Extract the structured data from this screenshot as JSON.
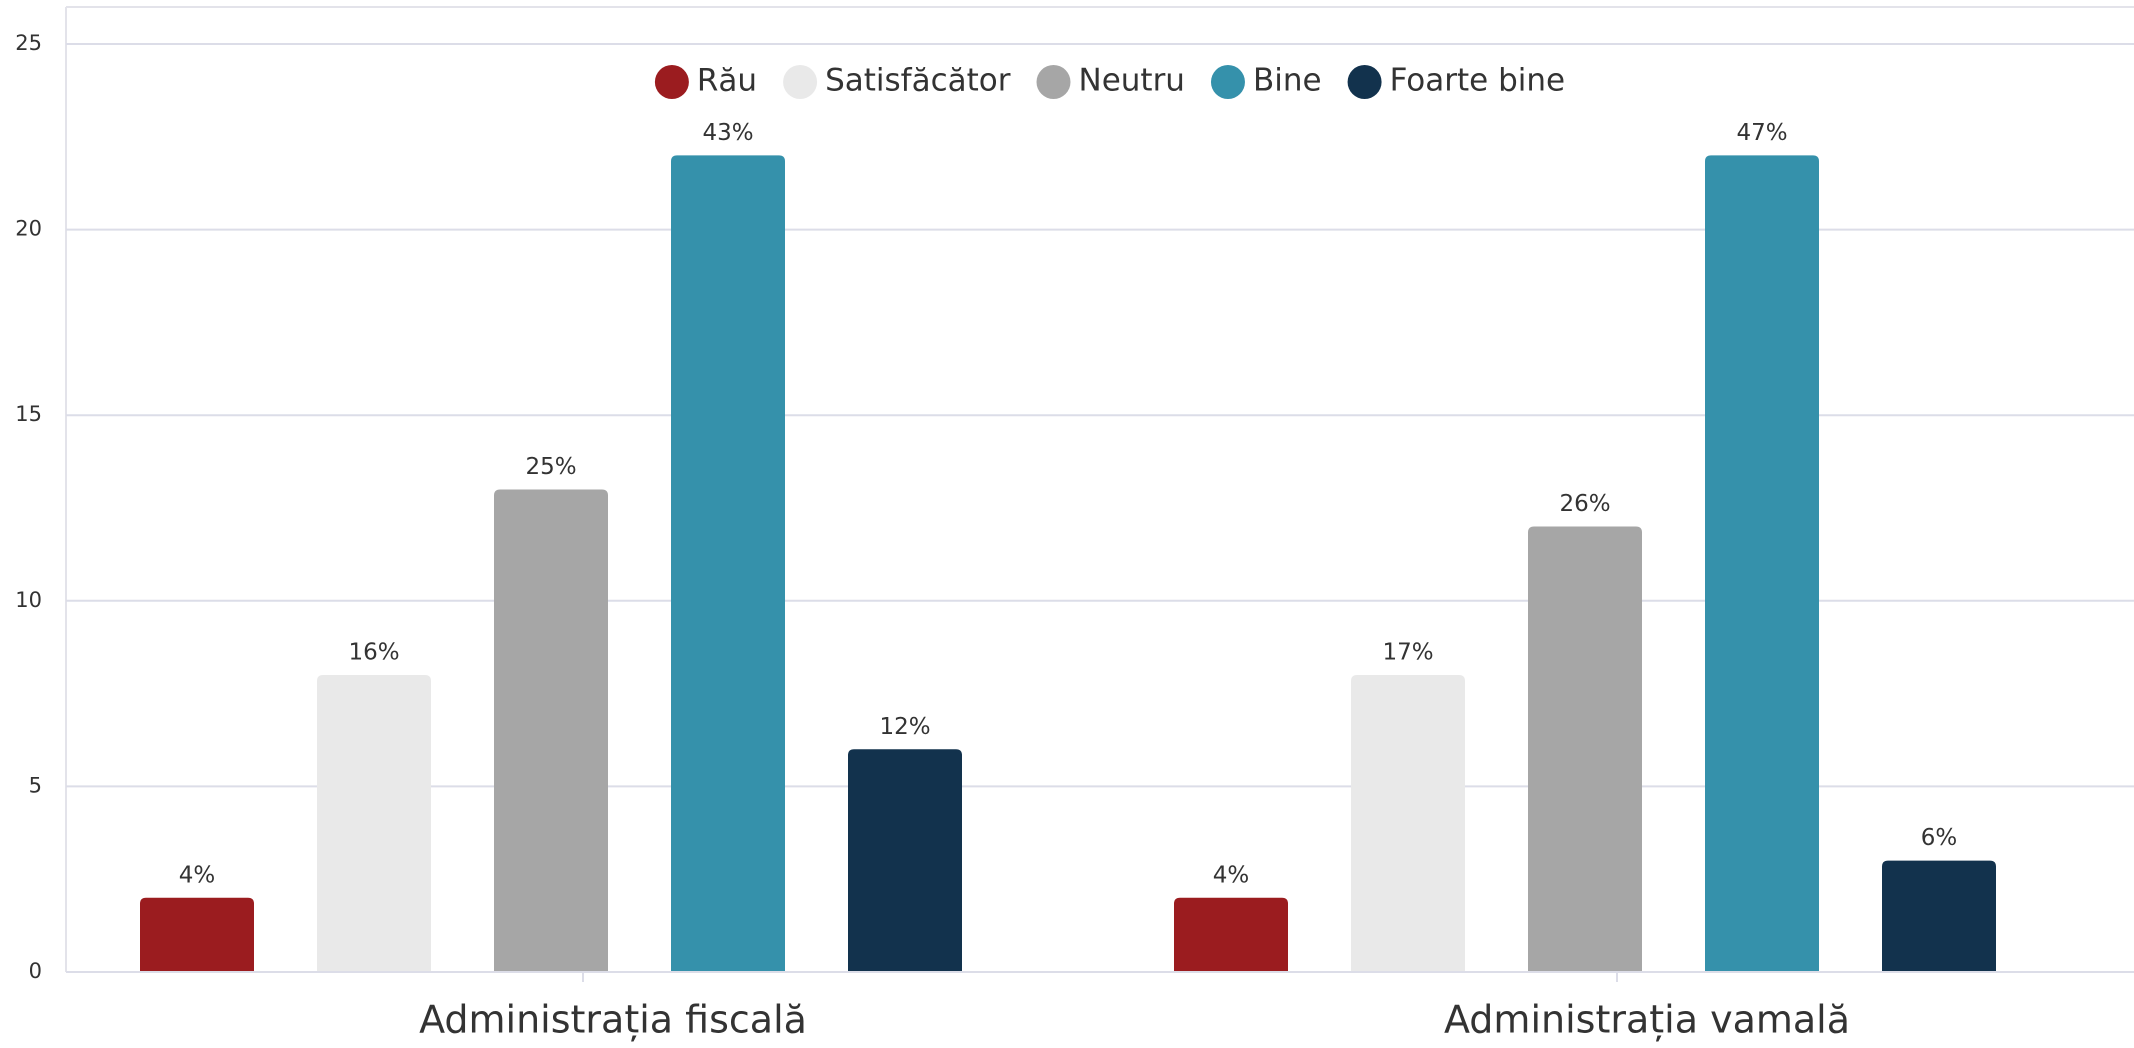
{
  "chart_data": {
    "type": "bar",
    "categories": [
      "Administrația fiscală",
      "Administrația vamală"
    ],
    "series": [
      {
        "name": "Rău",
        "color": "#9b1c1f",
        "values": [
          2,
          2
        ],
        "percent_labels": [
          "4%",
          "4%"
        ]
      },
      {
        "name": "Satisfăcător",
        "color": "#e9e9e9",
        "values": [
          8,
          8
        ],
        "percent_labels": [
          "16%",
          "17%"
        ]
      },
      {
        "name": "Neutru",
        "color": "#a6a6a6",
        "values": [
          13,
          12
        ],
        "percent_labels": [
          "25%",
          "26%"
        ]
      },
      {
        "name": "Bine",
        "color": "#3591ab",
        "values": [
          22,
          22
        ],
        "percent_labels": [
          "43%",
          "47%"
        ]
      },
      {
        "name": "Foarte bine",
        "color": "#12324d",
        "values": [
          6,
          3
        ],
        "percent_labels": [
          "12%",
          "6%"
        ]
      }
    ],
    "ylim": [
      0,
      25
    ],
    "yticks": [
      0,
      5,
      10,
      15,
      20,
      25
    ],
    "grid": true,
    "legend": "top"
  }
}
